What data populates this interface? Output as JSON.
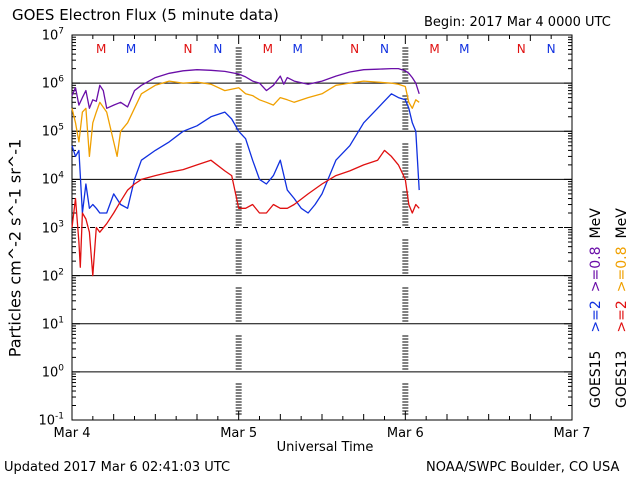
{
  "title": "GOES Electron Flux (5 minute data)",
  "begin": "Begin: 2017 Mar 4 0000 UTC",
  "updated": "Updated 2017 Mar  6 02:41:03 UTC",
  "credit": "NOAA/SWPC Boulder, CO USA",
  "colors": {
    "goes15_2mev": "#1030e0",
    "goes13_2mev": "#e01010",
    "goes15_08mev": "#6a0ea8",
    "goes13_08mev": "#f0a000"
  },
  "chart_data": {
    "type": "line",
    "title": "GOES Electron Flux (5 minute data)",
    "xlabel": "Universal Time",
    "ylabel": "Particles cm^-2 s^-1 sr^-1",
    "y_scale": "log",
    "ylim": [
      0.1,
      10000000
    ],
    "xlim_hours": [
      0,
      72
    ],
    "x_ticks": [
      {
        "hour": 0,
        "label": "Mar 4"
      },
      {
        "hour": 24,
        "label": "Mar 5"
      },
      {
        "hour": 48,
        "label": "Mar 6"
      },
      {
        "hour": 72,
        "label": "Mar 7"
      }
    ],
    "y_ticks": [
      {
        "value": 10000000,
        "base": "10",
        "exp": "7"
      },
      {
        "value": 1000000,
        "base": "10",
        "exp": "6"
      },
      {
        "value": 100000,
        "base": "10",
        "exp": "5"
      },
      {
        "value": 10000,
        "base": "10",
        "exp": "4"
      },
      {
        "value": 1000,
        "base": "10",
        "exp": "3"
      },
      {
        "value": 100,
        "base": "10",
        "exp": "2"
      },
      {
        "value": 10,
        "base": "10",
        "exp": "1"
      },
      {
        "value": 1,
        "base": "10",
        "exp": "0"
      },
      {
        "value": 0.1,
        "base": "10",
        "exp": "-1"
      }
    ],
    "alert_threshold": 1000,
    "noon_markers": [
      {
        "hour": 4.2,
        "label": "M",
        "sat": "GOES13"
      },
      {
        "hour": 8.5,
        "label": "M",
        "sat": "GOES15"
      },
      {
        "hour": 16.7,
        "label": "N",
        "sat": "GOES13"
      },
      {
        "hour": 21.0,
        "label": "N",
        "sat": "GOES15"
      },
      {
        "hour": 28.2,
        "label": "M",
        "sat": "GOES13"
      },
      {
        "hour": 32.5,
        "label": "M",
        "sat": "GOES15"
      },
      {
        "hour": 40.7,
        "label": "N",
        "sat": "GOES13"
      },
      {
        "hour": 45.0,
        "label": "N",
        "sat": "GOES15"
      },
      {
        "hour": 52.2,
        "label": "M",
        "sat": "GOES13"
      },
      {
        "hour": 56.5,
        "label": "M",
        "sat": "GOES15"
      },
      {
        "hour": 64.7,
        "label": "N",
        "sat": "GOES13"
      },
      {
        "hour": 69.0,
        "label": "N",
        "sat": "GOES15"
      }
    ],
    "legend": [
      {
        "label": "GOES15",
        "sat": "GOES15"
      },
      {
        "label": ">=2",
        "sat": "GOES15",
        "series": "goes15_2mev"
      },
      {
        "label": ">=0.8",
        "sat": "GOES15",
        "series": "goes15_08mev"
      },
      {
        "label": "MeV",
        "sat": "GOES15"
      },
      {
        "label": "GOES13",
        "sat": "GOES13"
      },
      {
        "label": ">=2",
        "sat": "GOES13",
        "series": "goes13_2mev"
      },
      {
        "label": ">=0.8",
        "sat": "GOES13",
        "series": "goes13_08mev"
      },
      {
        "label": "MeV",
        "sat": "GOES13"
      }
    ],
    "series": [
      {
        "key": "goes15_08mev",
        "name": "GOES15 >=0.8 MeV",
        "x": [
          0,
          0.5,
          1,
          1.5,
          2,
          2.5,
          3,
          3.5,
          4,
          4.5,
          5,
          6,
          7,
          8,
          9,
          10,
          12,
          14,
          16,
          18,
          20,
          22,
          24,
          25,
          26,
          27,
          28,
          29,
          30,
          30.5,
          31,
          32,
          34,
          36,
          38,
          40,
          42,
          44,
          46,
          47,
          48,
          48.5,
          49,
          49.5,
          50
        ],
        "values": [
          550000,
          800000,
          350000,
          500000,
          700000,
          300000,
          450000,
          420000,
          900000,
          700000,
          300000,
          350000,
          400000,
          320000,
          700000,
          900000,
          1300000,
          1600000,
          1800000,
          1900000,
          1850000,
          1750000,
          1550000,
          1350000,
          1100000,
          1000000,
          700000,
          900000,
          1400000,
          950000,
          1300000,
          1100000,
          950000,
          1100000,
          1400000,
          1700000,
          1900000,
          1950000,
          2000000,
          2000000,
          1800000,
          1600000,
          1300000,
          1000000,
          600000
        ]
      },
      {
        "key": "goes13_08mev",
        "name": "GOES13 >=0.8 MeV",
        "x": [
          0,
          0.5,
          1,
          1.5,
          2,
          2.5,
          3,
          3.5,
          4,
          5,
          6,
          6.5,
          7,
          8,
          9,
          10,
          12,
          14,
          16,
          18,
          20,
          22,
          24,
          25,
          26,
          27,
          28,
          29,
          30,
          31,
          32,
          34,
          36,
          38,
          40,
          42,
          44,
          46,
          47,
          48,
          48.5,
          49,
          49.5,
          50
        ],
        "values": [
          300000,
          150000,
          60000,
          250000,
          300000,
          30000,
          150000,
          250000,
          400000,
          250000,
          60000,
          30000,
          100000,
          150000,
          300000,
          600000,
          900000,
          1100000,
          1000000,
          1050000,
          950000,
          700000,
          800000,
          600000,
          550000,
          450000,
          400000,
          350000,
          500000,
          450000,
          400000,
          500000,
          600000,
          900000,
          1000000,
          1100000,
          1050000,
          1000000,
          950000,
          850000,
          400000,
          300000,
          450000,
          400000
        ]
      },
      {
        "key": "goes15_2mev",
        "name": "GOES15 >=2 MeV",
        "x": [
          0,
          0.5,
          1,
          1.5,
          2,
          2.5,
          3,
          3.5,
          4,
          5,
          6,
          7,
          8,
          9,
          10,
          12,
          14,
          16,
          18,
          20,
          22,
          23,
          24,
          25,
          26,
          27,
          28,
          29,
          30,
          31,
          32,
          33,
          34,
          35,
          36,
          38,
          40,
          42,
          44,
          46,
          47,
          48,
          48.5,
          49,
          49.5,
          50
        ],
        "values": [
          50000,
          30000,
          40000,
          2000,
          8000,
          2500,
          3000,
          2500,
          2000,
          2000,
          5000,
          3000,
          2500,
          10000,
          25000,
          40000,
          60000,
          100000,
          130000,
          200000,
          250000,
          180000,
          100000,
          70000,
          25000,
          10000,
          8000,
          12000,
          25000,
          6000,
          4000,
          2500,
          2000,
          3000,
          5000,
          25000,
          50000,
          150000,
          300000,
          600000,
          500000,
          450000,
          300000,
          150000,
          100000,
          6000
        ]
      },
      {
        "key": "goes13_2mev",
        "name": "GOES13 >=2 MeV",
        "x": [
          0,
          0.5,
          1,
          1.2,
          1.5,
          2,
          2.5,
          3,
          3.5,
          4,
          5,
          6,
          7,
          8,
          9,
          10,
          12,
          14,
          16,
          18,
          20,
          22,
          23,
          24,
          25,
          26,
          27,
          28,
          29,
          30,
          31,
          32,
          34,
          36,
          38,
          40,
          42,
          44,
          45,
          46,
          47,
          48,
          48.5,
          49,
          49.5,
          50
        ],
        "values": [
          1000,
          4000,
          500,
          150,
          2000,
          1500,
          800,
          100,
          1000,
          800,
          1200,
          2000,
          3500,
          6000,
          8000,
          10000,
          12000,
          14000,
          16000,
          20000,
          25000,
          15000,
          12000,
          2500,
          2500,
          3000,
          2000,
          2000,
          3000,
          2500,
          2500,
          3000,
          5000,
          8000,
          12000,
          15000,
          20000,
          25000,
          40000,
          30000,
          20000,
          10000,
          3000,
          2000,
          3000,
          2500
        ]
      }
    ]
  }
}
